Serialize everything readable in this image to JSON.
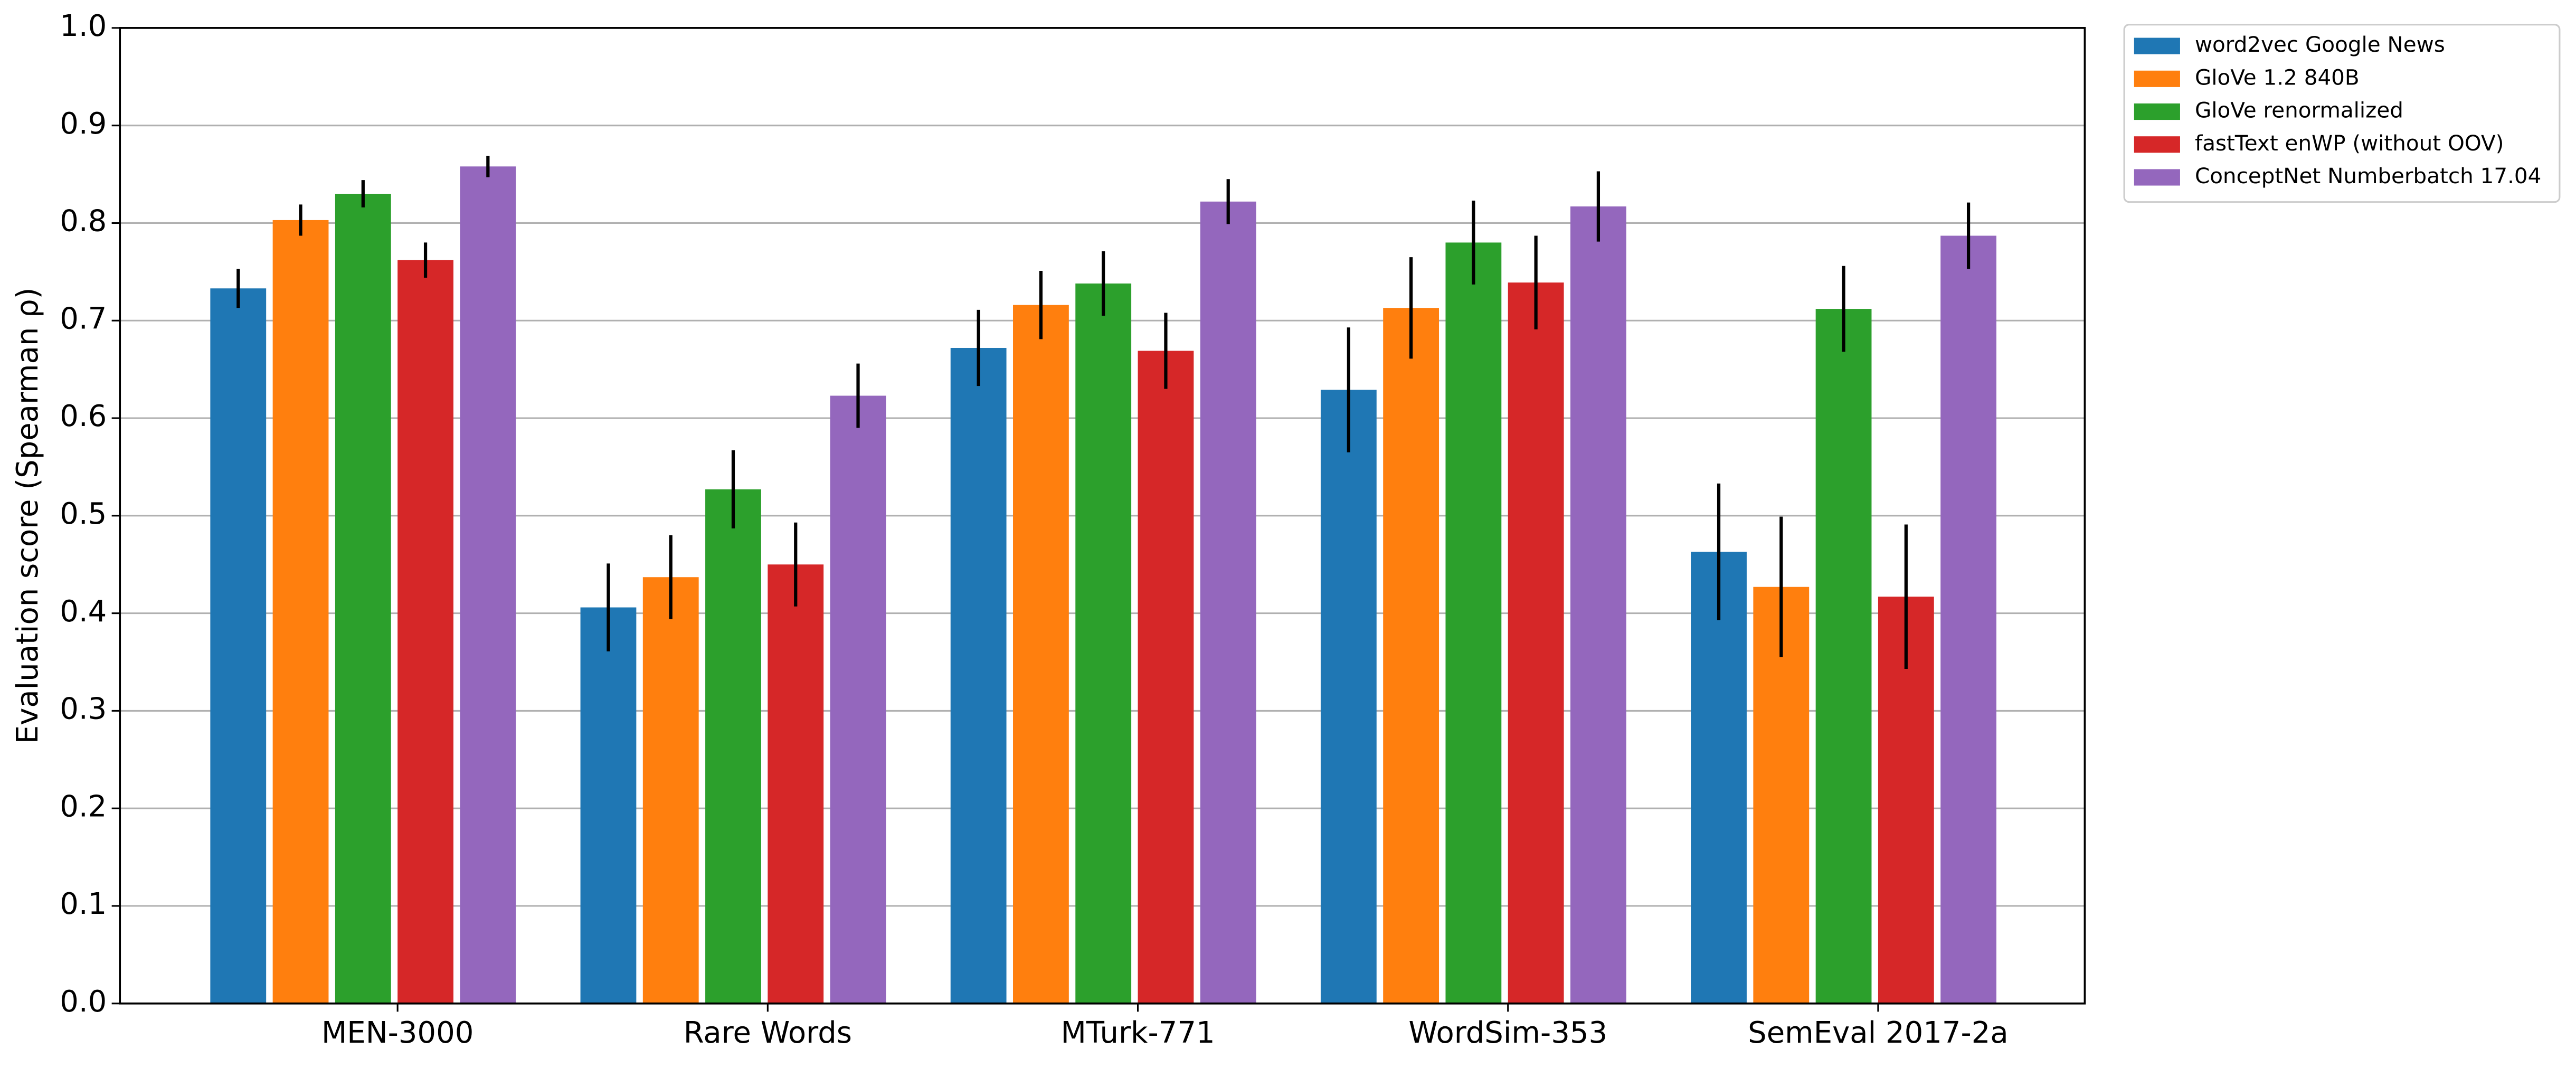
{
  "chart_data": {
    "type": "bar",
    "ylabel": "Evaluation score (Spearman ρ)",
    "categories": [
      "MEN-3000",
      "Rare Words",
      "MTurk-771",
      "WordSim-353",
      "SemEval 2017-2a"
    ],
    "series": [
      {
        "name": "word2vec Google News",
        "color": "#1f77b4",
        "values": [
          0.733,
          0.406,
          0.672,
          0.629,
          0.463
        ],
        "errors": [
          0.02,
          0.045,
          0.039,
          0.064,
          0.07
        ]
      },
      {
        "name": "GloVe 1.2 840B",
        "color": "#ff7f0e",
        "values": [
          0.803,
          0.437,
          0.716,
          0.713,
          0.427
        ],
        "errors": [
          0.016,
          0.043,
          0.035,
          0.052,
          0.072
        ]
      },
      {
        "name": "GloVe renormalized",
        "color": "#2ca02c",
        "values": [
          0.83,
          0.527,
          0.738,
          0.78,
          0.712
        ],
        "errors": [
          0.014,
          0.04,
          0.033,
          0.043,
          0.044
        ]
      },
      {
        "name": "fastText enWP (without OOV)",
        "color": "#d62728",
        "values": [
          0.762,
          0.45,
          0.669,
          0.739,
          0.417
        ],
        "errors": [
          0.018,
          0.043,
          0.039,
          0.048,
          0.074
        ]
      },
      {
        "name": "ConceptNet Numberbatch 17.04",
        "color": "#9467bd",
        "values": [
          0.858,
          0.623,
          0.822,
          0.817,
          0.787
        ],
        "errors": [
          0.011,
          0.033,
          0.023,
          0.036,
          0.034
        ]
      }
    ],
    "ylim": [
      0,
      1
    ],
    "yticks": [
      {
        "value": 0,
        "label": "0.0"
      },
      0.1,
      0.2,
      0.3,
      0.4,
      0.5,
      0.6,
      0.7,
      0.8,
      0.9,
      {
        "value": 1,
        "label": "1.0"
      }
    ],
    "grid": true,
    "legend": "outside-upper-right"
  }
}
